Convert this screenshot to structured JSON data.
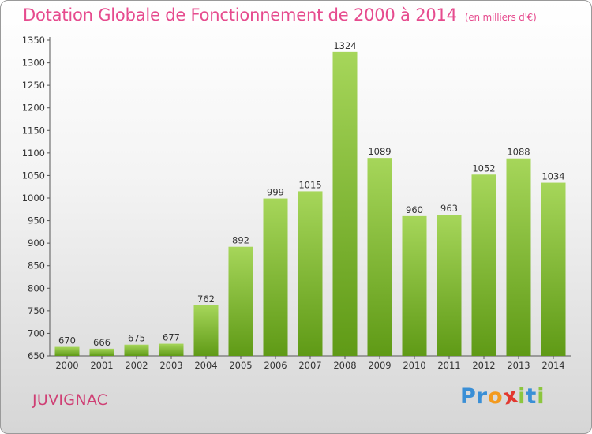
{
  "header": {
    "title": "Dotation Globale de Fonctionnement de 2000 à 2014",
    "unit": "(en milliers d'€)"
  },
  "footer": {
    "commune": "JUVIGNAC",
    "logo_letters": [
      "P",
      "r",
      "o",
      "x",
      "i",
      "t",
      "i"
    ]
  },
  "colors": {
    "title": "#e64b8e",
    "commune": "#cf3f74",
    "bar_light": "#a6d65a",
    "bar_dark": "#5f9a16",
    "logo": [
      "#3a8fd6",
      "#3a8fd6",
      "#f39a1e",
      "#e2382f",
      "#8cc63e",
      "#3a8fd6",
      "#8cc63e"
    ]
  },
  "chart_data": {
    "type": "bar",
    "categories": [
      "2000",
      "2001",
      "2002",
      "2003",
      "2004",
      "2005",
      "2006",
      "2007",
      "2008",
      "2009",
      "2010",
      "2011",
      "2012",
      "2013",
      "2014"
    ],
    "values": [
      670,
      666,
      675,
      677,
      762,
      892,
      999,
      1015,
      1324,
      1089,
      960,
      963,
      1052,
      1088,
      1034
    ],
    "value_labels": [
      "670",
      "666",
      "675",
      "677",
      "762",
      "892",
      "999",
      "1015",
      "1324",
      "1089",
      "960",
      "963",
      "1052",
      "1088",
      "1034"
    ],
    "title": "Dotation Globale de Fonctionnement de 2000 à 2014",
    "xlabel": "",
    "ylabel": "",
    "ylim": [
      650,
      1350
    ],
    "yticks": [
      "650",
      "700",
      "750",
      "800",
      "850",
      "900",
      "950",
      "1000",
      "1050",
      "1100",
      "1150",
      "1200",
      "1250",
      "1300",
      "1350"
    ],
    "grid": false,
    "legend": "none"
  }
}
